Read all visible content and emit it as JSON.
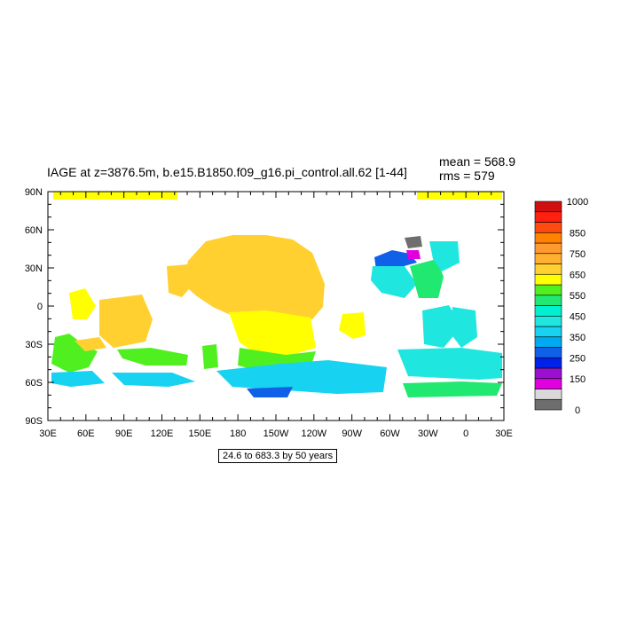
{
  "header": {
    "title": "IAGE at z=3876.5m, b.e15.B1850.f09_g16.pi_control.all.62 [1-44]",
    "mean": "mean = 568.9",
    "rms": "rms = 579"
  },
  "map": {
    "projection": "cylindrical equidistant",
    "lon_range": [
      30,
      390
    ],
    "lat_range": [
      -90,
      90
    ],
    "x_ticks": [
      "30E",
      "60E",
      "90E",
      "120E",
      "150E",
      "180",
      "150W",
      "120W",
      "90W",
      "60W",
      "30W",
      "0",
      "30E"
    ],
    "y_ticks": [
      "90N",
      "60N",
      "30N",
      "0",
      "30S",
      "60S",
      "90S"
    ]
  },
  "colorbar": {
    "colors": [
      "#6e6e6e",
      "#d9d9d9",
      "#e000e0",
      "#9a0fd0",
      "#0021e8",
      "#1060e8",
      "#00aaf0",
      "#17d2f0",
      "#20e6e0",
      "#00f0d0",
      "#20e870",
      "#50f020",
      "#ffff00",
      "#ffd030",
      "#ffb030",
      "#ff9a30",
      "#ff8200",
      "#ff4b10",
      "#ff2010",
      "#d01010"
    ],
    "labels": [
      "0",
      "150",
      "250",
      "350",
      "450",
      "550",
      "650",
      "750",
      "850",
      "1000"
    ]
  },
  "footnote": "24.6 to 683.3 by 50 years"
}
